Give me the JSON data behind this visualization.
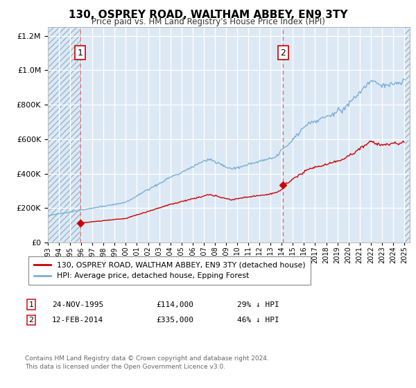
{
  "title": "130, OSPREY ROAD, WALTHAM ABBEY, EN9 3TY",
  "subtitle": "Price paid vs. HM Land Registry's House Price Index (HPI)",
  "legend_line1": "130, OSPREY ROAD, WALTHAM ABBEY, EN9 3TY (detached house)",
  "legend_line2": "HPI: Average price, detached house, Epping Forest",
  "footnote": "Contains HM Land Registry data © Crown copyright and database right 2024.\nThis data is licensed under the Open Government Licence v3.0.",
  "t1_label": "1",
  "t1_date": "24-NOV-1995",
  "t1_price": "£114,000",
  "t1_pct": "29% ↓ HPI",
  "t2_label": "2",
  "t2_date": "12-FEB-2014",
  "t2_price": "£335,000",
  "t2_pct": "46% ↓ HPI",
  "ylim": [
    0,
    1250000
  ],
  "yticks": [
    0,
    200000,
    400000,
    600000,
    800000,
    1000000,
    1200000
  ],
  "price_color": "#cc0000",
  "hpi_color": "#7aaed6",
  "bg_color": "#dce9f5",
  "hatch_color": "#b8cfe0",
  "vline_color": "#e06060",
  "marker1_x": 1995.92,
  "marker1_y": 114000,
  "marker2_x": 2014.12,
  "marker2_y": 335000,
  "xmin": 1993,
  "xmax": 2025.5
}
